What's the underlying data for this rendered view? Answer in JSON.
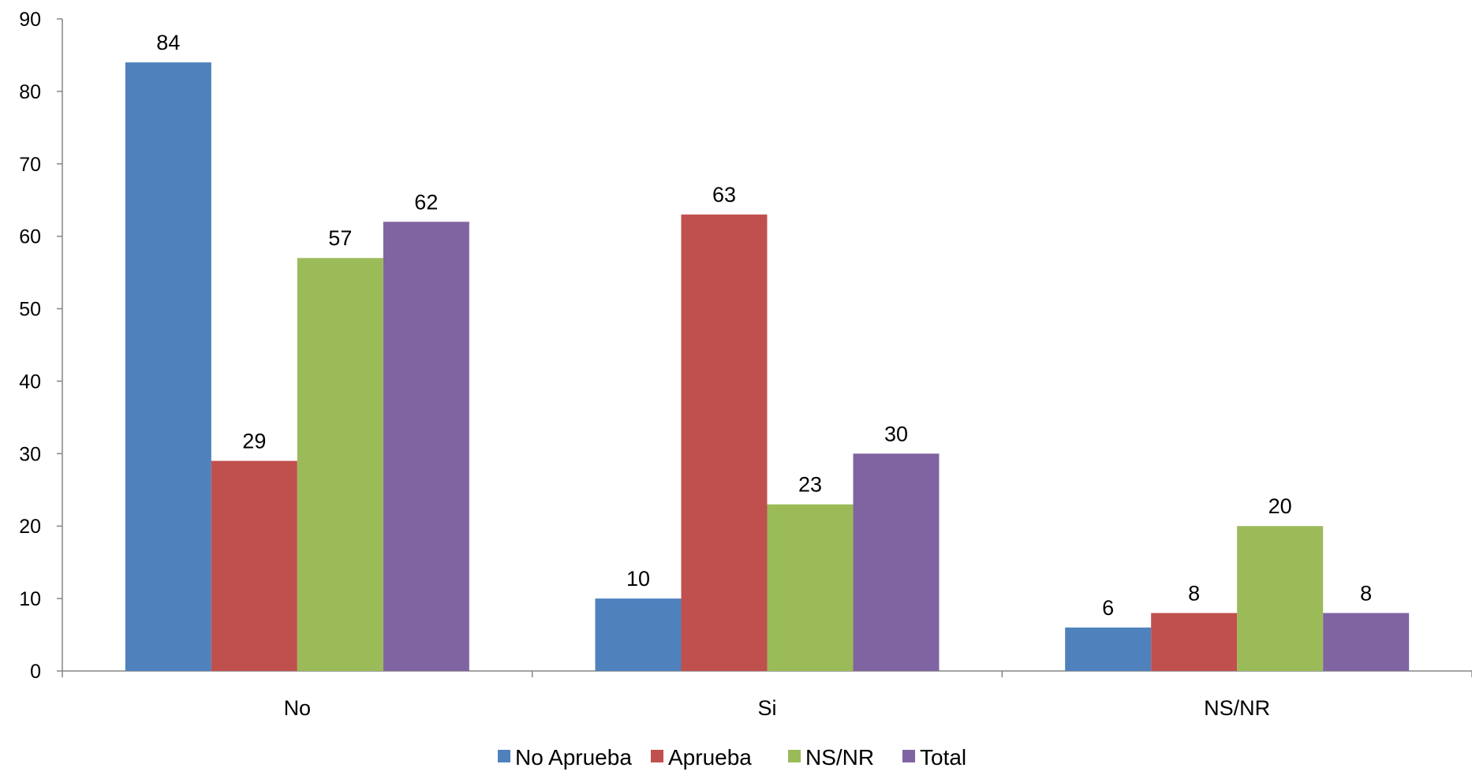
{
  "chart_data": {
    "type": "bar",
    "categories": [
      "No",
      "Si",
      "NS/NR"
    ],
    "series": [
      {
        "name": "No Aprueba",
        "color": "#4f81bd",
        "values": [
          84,
          10,
          6
        ]
      },
      {
        "name": "Aprueba",
        "color": "#c0504d",
        "values": [
          29,
          63,
          8
        ]
      },
      {
        "name": "NS/NR",
        "color": "#9bbb59",
        "values": [
          57,
          23,
          20
        ]
      },
      {
        "name": "Total",
        "color": "#8064a2",
        "values": [
          62,
          30,
          8
        ]
      }
    ],
    "ylim": [
      0,
      90
    ],
    "yticks": [
      0,
      10,
      20,
      30,
      40,
      50,
      60,
      70,
      80,
      90
    ],
    "grid": false,
    "legend": "bottom",
    "data_labels": true
  }
}
